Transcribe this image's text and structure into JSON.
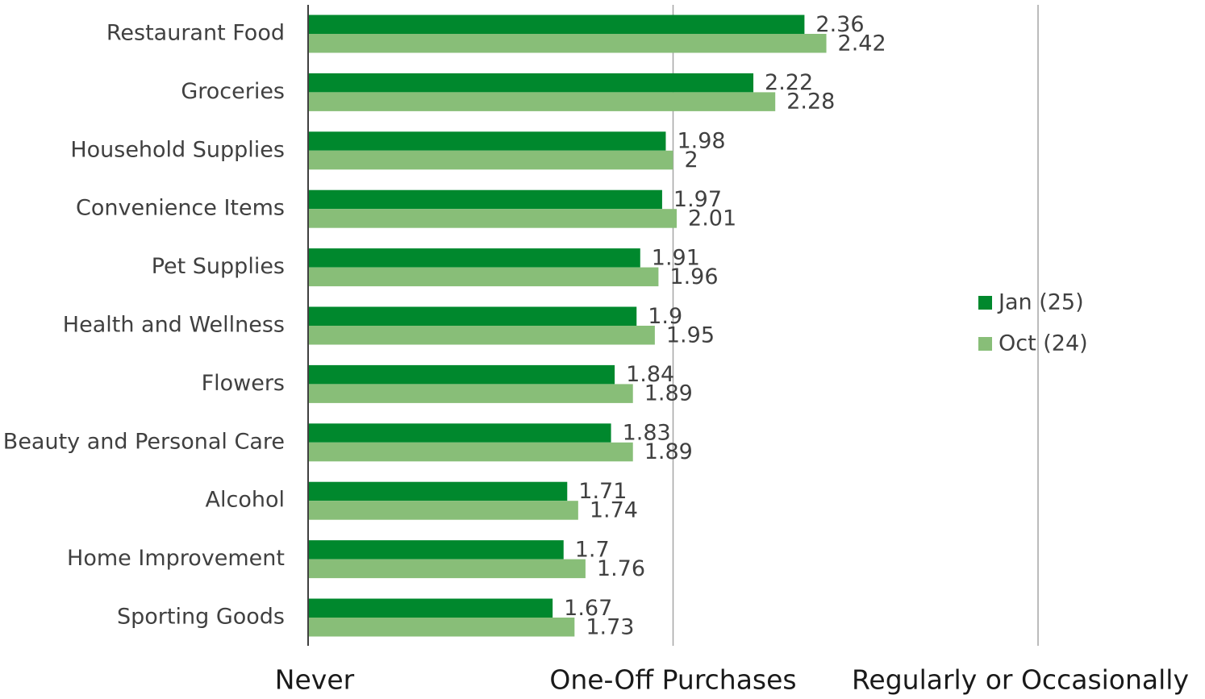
{
  "chart_data": {
    "type": "bar",
    "orientation": "horizontal",
    "categories": [
      "Restaurant Food",
      "Groceries",
      "Household Supplies",
      "Convenience Items",
      "Pet Supplies",
      "Health and Wellness",
      "Flowers",
      "Beauty and Personal Care",
      "Alcohol",
      "Home Improvement",
      "Sporting Goods"
    ],
    "series": [
      {
        "name": "Jan (25)",
        "color": "#00882d",
        "values": [
          2.36,
          2.22,
          1.98,
          1.97,
          1.91,
          1.9,
          1.84,
          1.83,
          1.71,
          1.7,
          1.67
        ],
        "labels": [
          "2.36",
          "2.22",
          "1.98",
          "1.97",
          "1.91",
          "1.9",
          "1.84",
          "1.83",
          "1.71",
          "1.7",
          "1.67"
        ]
      },
      {
        "name": "Oct (24)",
        "color": "#88be78",
        "values": [
          2.42,
          2.28,
          2.0,
          2.01,
          1.96,
          1.95,
          1.89,
          1.89,
          1.74,
          1.76,
          1.73
        ],
        "labels": [
          "2.42",
          "2.28",
          "2",
          "2.01",
          "1.96",
          "1.95",
          "1.89",
          "1.89",
          "1.74",
          "1.76",
          "1.73"
        ]
      }
    ],
    "xlim": [
      1,
      3
    ],
    "xticks": [
      {
        "value": 1,
        "label": "Never"
      },
      {
        "value": 2,
        "label": "One-Off Purchases"
      },
      {
        "value": 3,
        "label": "Regularly or Occasionally"
      }
    ],
    "gridlines": "vertical",
    "legend": "right",
    "title": "",
    "xlabel": "",
    "ylabel": ""
  }
}
